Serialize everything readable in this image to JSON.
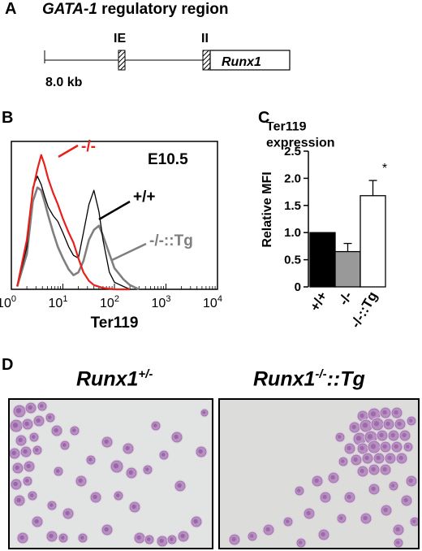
{
  "panels": {
    "a": "A",
    "b": "B",
    "c": "C",
    "d": "D"
  },
  "panel_a": {
    "title_gene": "GATA-1",
    "title_rest": " regulatory region",
    "exon_ie": "IE",
    "exon_ii": "II",
    "gene_box": "Runx1",
    "scale_label": "8.0 kb"
  },
  "panel_b": {
    "stage": "E10.5",
    "label_ko": "-/-",
    "label_wt": "+/+",
    "label_tg": "-/-::Tg",
    "xlabel": "Ter119",
    "xtick_base": [
      "10",
      "10",
      "10",
      "10",
      "10"
    ],
    "xtick_exp": [
      "0",
      "1",
      "2",
      "3",
      "4"
    ],
    "colors": {
      "ko": "#e8201c",
      "wt": "#000000",
      "tg": "#7f7f7f"
    }
  },
  "panel_c": {
    "title_line1": "Ter119",
    "title_line2": "expression",
    "ylabel": "Relative MFI",
    "yticks": [
      "0",
      "0.5",
      "1.0",
      "1.5",
      "2.0",
      "2.5"
    ],
    "significance": "*"
  },
  "panel_d": {
    "left_title_main": "Runx1",
    "left_title_sup": "+/-",
    "right_title_main": "Runx1",
    "right_title_sup": "-/-",
    "right_title_suffix": "::Tg"
  },
  "chart_data": [
    {
      "type": "line",
      "panel": "B",
      "description_axis": "log-scale fluorescence histogram",
      "xlabel": "Ter119",
      "xscale": "log",
      "xlim": [
        1,
        10000
      ],
      "series": [
        {
          "name": "-/-",
          "color": "#e8201c",
          "x": [
            1.3,
            2.0,
            2.6,
            3.2,
            3.8,
            4.4,
            5.2,
            6.5,
            8,
            10,
            13,
            16,
            20,
            25,
            32,
            40,
            60,
            100,
            200
          ],
          "y": [
            0.02,
            0.35,
            0.7,
            0.85,
            0.95,
            0.88,
            0.78,
            0.68,
            0.6,
            0.5,
            0.4,
            0.33,
            0.22,
            0.12,
            0.06,
            0.03,
            0.01,
            0.0,
            0.0
          ]
        },
        {
          "name": "+/+",
          "color": "#000000",
          "x": [
            1.3,
            2.0,
            2.6,
            3.2,
            3.8,
            4.4,
            5.2,
            6.5,
            8,
            10,
            13,
            16,
            20,
            25,
            32,
            40,
            50,
            60,
            80,
            100,
            150,
            200
          ],
          "y": [
            0.02,
            0.3,
            0.72,
            0.8,
            0.74,
            0.66,
            0.58,
            0.52,
            0.48,
            0.4,
            0.3,
            0.24,
            0.22,
            0.4,
            0.6,
            0.7,
            0.55,
            0.35,
            0.12,
            0.05,
            0.02,
            0.0
          ]
        },
        {
          "name": "-/-::Tg",
          "color": "#7f7f7f",
          "x": [
            1.3,
            2.0,
            2.6,
            3.2,
            3.8,
            4.4,
            5.2,
            6.5,
            8,
            10,
            13,
            16,
            20,
            25,
            32,
            40,
            50,
            60,
            80,
            100,
            150,
            200,
            300
          ],
          "y": [
            0.02,
            0.25,
            0.62,
            0.72,
            0.7,
            0.62,
            0.52,
            0.4,
            0.3,
            0.22,
            0.14,
            0.1,
            0.12,
            0.2,
            0.35,
            0.42,
            0.45,
            0.38,
            0.25,
            0.15,
            0.07,
            0.03,
            0.0
          ]
        }
      ]
    },
    {
      "type": "bar",
      "panel": "C",
      "title": "Ter119 expression",
      "ylabel": "Relative MFI",
      "ylim": [
        0,
        2.5
      ],
      "categories": [
        "+/+",
        "-/-",
        "-/-::Tg"
      ],
      "values": [
        1.0,
        0.65,
        1.68
      ],
      "errors": [
        0.0,
        0.15,
        0.28
      ],
      "colors": [
        "#000000",
        "#999999",
        "#ffffff"
      ],
      "significant": [
        false,
        false,
        true
      ]
    }
  ]
}
